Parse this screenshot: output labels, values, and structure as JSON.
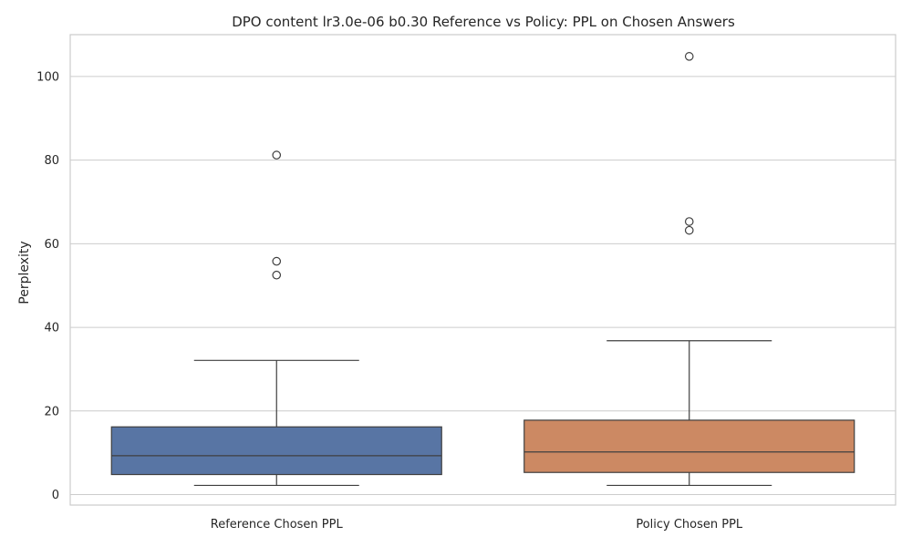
{
  "chart_data": {
    "type": "box",
    "title": "DPO content lr3.0e-06 b0.30 Reference vs Policy: PPL on Chosen Answers",
    "xlabel": "",
    "ylabel": "Perplexity",
    "ylim": [
      -2.5,
      110
    ],
    "yticks": [
      0,
      20,
      40,
      60,
      80,
      100
    ],
    "grid": true,
    "categories": [
      "Reference Chosen PPL",
      "Policy Chosen PPL"
    ],
    "boxes": [
      {
        "category": "Reference Chosen PPL",
        "whisker_low": 2.2,
        "q1": 4.8,
        "median": 9.3,
        "q3": 16.2,
        "whisker_high": 32.1,
        "outliers": [
          52.5,
          55.8,
          81.2
        ],
        "color": "#5875a4"
      },
      {
        "category": "Policy Chosen PPL",
        "whisker_low": 2.2,
        "q1": 5.3,
        "median": 10.2,
        "q3": 17.8,
        "whisker_high": 36.8,
        "outliers": [
          63.2,
          65.3,
          104.8
        ],
        "color": "#cc8963"
      }
    ],
    "colors": {
      "grid": "#cccccc",
      "frame": "#cccccc",
      "lines": "#3f3f3f"
    }
  }
}
